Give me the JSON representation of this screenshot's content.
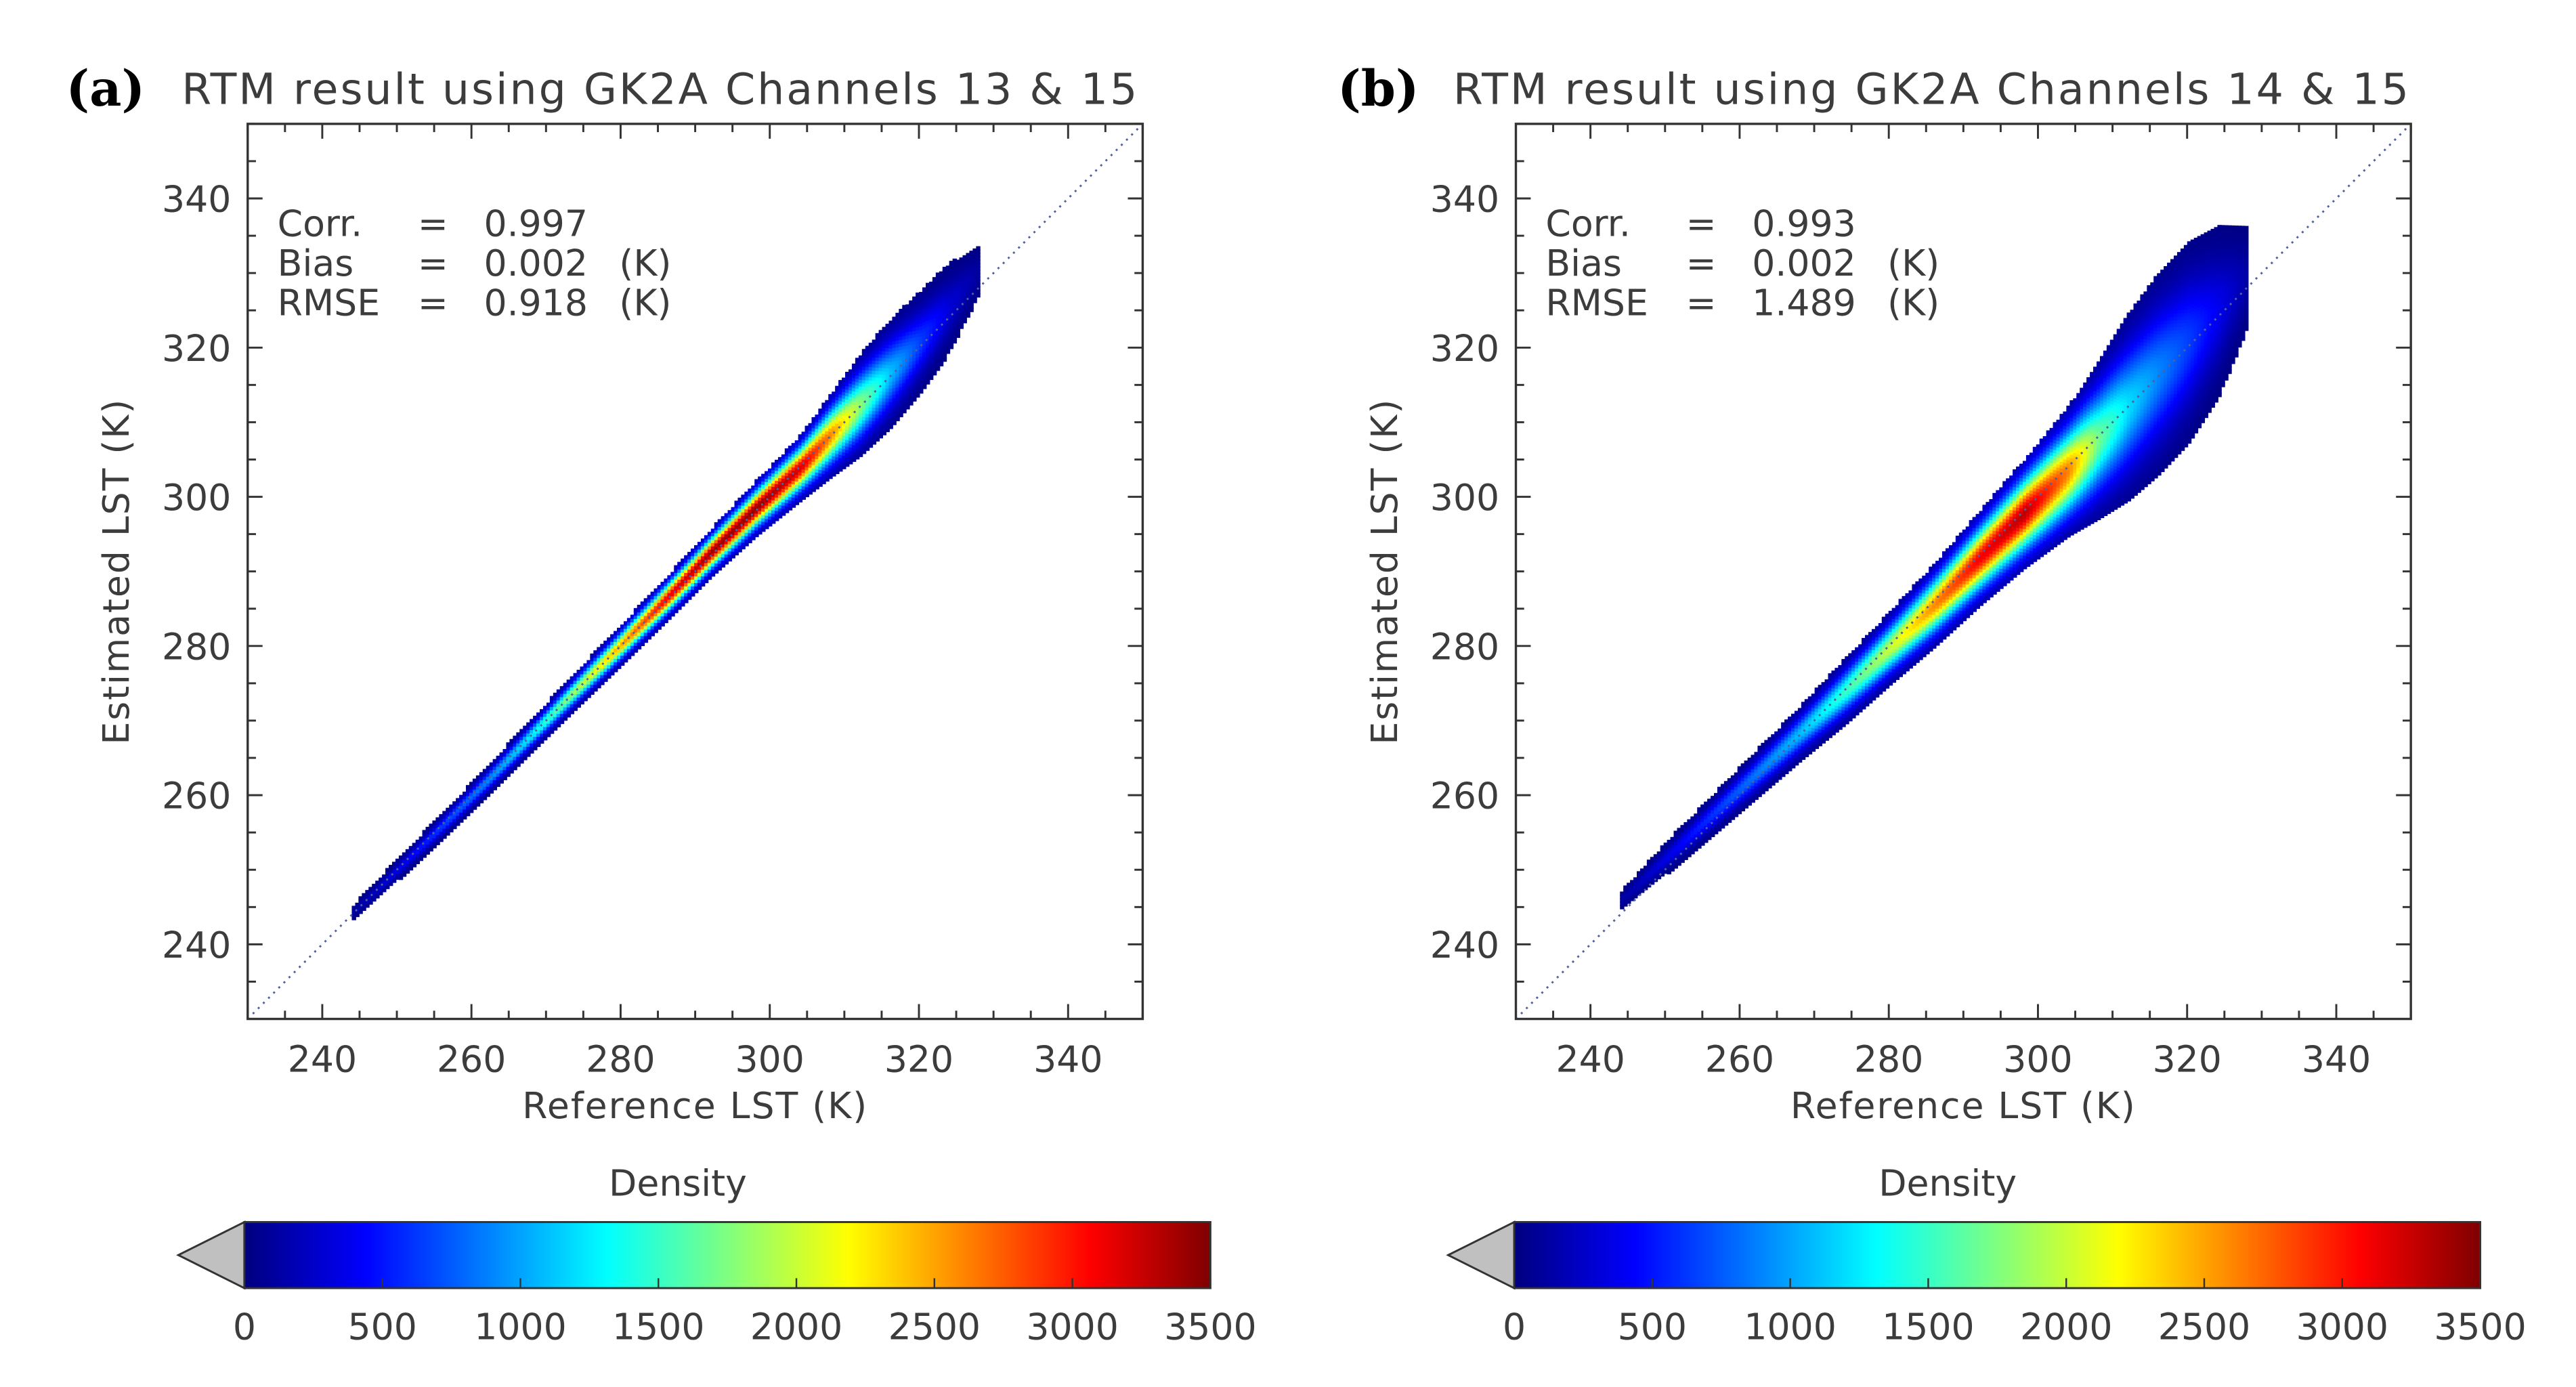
{
  "chart_data": [
    {
      "type": "scatter",
      "panel_label": "(a)",
      "title": "RTM result using GK2A Channels 13 & 15",
      "xlabel": "Reference LST (K)",
      "ylabel": "Estimated LST (K)",
      "xlim": [
        230,
        350
      ],
      "ylim": [
        230,
        350
      ],
      "xticks": [
        240,
        260,
        280,
        300,
        320,
        340
      ],
      "yticks": [
        240,
        260,
        280,
        300,
        320,
        340
      ],
      "x_tick_labels": [
        "240",
        "260",
        "280",
        "300",
        "320",
        "340"
      ],
      "y_tick_labels": [
        "240",
        "260",
        "280",
        "300",
        "320",
        "340"
      ],
      "one_to_one_line": true,
      "stats": [
        {
          "name": "Corr.",
          "eq": "=",
          "value": "0.997",
          "unit": ""
        },
        {
          "name": "Bias",
          "eq": "=",
          "value": "0.002",
          "unit": "(K)"
        },
        {
          "name": "RMSE",
          "eq": "=",
          "value": "0.918",
          "unit": "(K)"
        }
      ],
      "density_profile": [
        {
          "x": 244,
          "y_center": 244.3,
          "halfwidth": 0.5,
          "peak_density": 120
        },
        {
          "x": 250,
          "y_center": 250.1,
          "halfwidth": 0.6,
          "peak_density": 350
        },
        {
          "x": 256,
          "y_center": 256.0,
          "halfwidth": 0.7,
          "peak_density": 650
        },
        {
          "x": 262,
          "y_center": 262.0,
          "halfwidth": 0.8,
          "peak_density": 900
        },
        {
          "x": 268,
          "y_center": 268.2,
          "halfwidth": 0.9,
          "peak_density": 1300
        },
        {
          "x": 274,
          "y_center": 274.3,
          "halfwidth": 1.0,
          "peak_density": 1900
        },
        {
          "x": 280,
          "y_center": 280.3,
          "halfwidth": 1.1,
          "peak_density": 2500
        },
        {
          "x": 286,
          "y_center": 286.4,
          "halfwidth": 1.2,
          "peak_density": 3100
        },
        {
          "x": 292,
          "y_center": 292.6,
          "halfwidth": 1.3,
          "peak_density": 3400
        },
        {
          "x": 298,
          "y_center": 298.5,
          "halfwidth": 1.5,
          "peak_density": 3450
        },
        {
          "x": 304,
          "y_center": 304.0,
          "halfwidth": 1.8,
          "peak_density": 3200
        },
        {
          "x": 308,
          "y_center": 308.3,
          "halfwidth": 2.3,
          "peak_density": 2600
        },
        {
          "x": 312,
          "y_center": 312.4,
          "halfwidth": 2.8,
          "peak_density": 1800
        },
        {
          "x": 316,
          "y_center": 316.6,
          "halfwidth": 3.0,
          "peak_density": 1100
        },
        {
          "x": 320,
          "y_center": 320.8,
          "halfwidth": 2.8,
          "peak_density": 650
        },
        {
          "x": 324,
          "y_center": 325.5,
          "halfwidth": 2.5,
          "peak_density": 300
        },
        {
          "x": 328,
          "y_center": 330.5,
          "halfwidth": 1.8,
          "peak_density": 90
        }
      ],
      "colorbar": {
        "label": "Density",
        "min": 0,
        "max": 3500,
        "ticks": [
          0,
          500,
          1000,
          1500,
          2000,
          2500,
          3000,
          3500
        ],
        "tick_labels": [
          "0",
          "500",
          "1000",
          "1500",
          "2000",
          "2500",
          "3000",
          "3500"
        ],
        "colormap": [
          "#00007f",
          "#0000ff",
          "#007fff",
          "#00ffff",
          "#7fff7f",
          "#ffff00",
          "#ff7f00",
          "#ff0000",
          "#7f0000"
        ],
        "underflow_color": "#c0c0c0"
      }
    },
    {
      "type": "scatter",
      "panel_label": "(b)",
      "title": "RTM result using GK2A Channels 14 & 15",
      "xlabel": "Reference LST (K)",
      "ylabel": "Estimated LST (K)",
      "xlim": [
        230,
        350
      ],
      "ylim": [
        230,
        350
      ],
      "xticks": [
        240,
        260,
        280,
        300,
        320,
        340
      ],
      "yticks": [
        240,
        260,
        280,
        300,
        320,
        340
      ],
      "x_tick_labels": [
        "240",
        "260",
        "280",
        "300",
        "320",
        "340"
      ],
      "y_tick_labels": [
        "240",
        "260",
        "280",
        "300",
        "320",
        "340"
      ],
      "one_to_one_line": true,
      "stats": [
        {
          "name": "Corr.",
          "eq": "=",
          "value": "0.993",
          "unit": ""
        },
        {
          "name": "Bias",
          "eq": "=",
          "value": "0.002",
          "unit": "(K)"
        },
        {
          "name": "RMSE",
          "eq": "=",
          "value": "1.489",
          "unit": "(K)"
        }
      ],
      "density_profile": [
        {
          "x": 244,
          "y_center": 246.0,
          "halfwidth": 0.6,
          "peak_density": 120
        },
        {
          "x": 250,
          "y_center": 251.6,
          "halfwidth": 0.9,
          "peak_density": 350
        },
        {
          "x": 256,
          "y_center": 257.2,
          "halfwidth": 1.1,
          "peak_density": 600
        },
        {
          "x": 262,
          "y_center": 262.8,
          "halfwidth": 1.3,
          "peak_density": 850
        },
        {
          "x": 268,
          "y_center": 268.4,
          "halfwidth": 1.5,
          "peak_density": 1100
        },
        {
          "x": 274,
          "y_center": 274.0,
          "halfwidth": 1.8,
          "peak_density": 1500
        },
        {
          "x": 280,
          "y_center": 279.8,
          "halfwidth": 2.0,
          "peak_density": 2000
        },
        {
          "x": 286,
          "y_center": 285.6,
          "halfwidth": 2.3,
          "peak_density": 2600
        },
        {
          "x": 292,
          "y_center": 291.8,
          "halfwidth": 2.6,
          "peak_density": 3100
        },
        {
          "x": 298,
          "y_center": 297.8,
          "halfwidth": 3.0,
          "peak_density": 3300
        },
        {
          "x": 304,
          "y_center": 303.6,
          "halfwidth": 3.6,
          "peak_density": 2600
        },
        {
          "x": 308,
          "y_center": 307.8,
          "halfwidth": 4.4,
          "peak_density": 1700
        },
        {
          "x": 312,
          "y_center": 312.2,
          "halfwidth": 5.2,
          "peak_density": 1200
        },
        {
          "x": 316,
          "y_center": 316.6,
          "halfwidth": 5.6,
          "peak_density": 900
        },
        {
          "x": 320,
          "y_center": 320.8,
          "halfwidth": 5.6,
          "peak_density": 650
        },
        {
          "x": 324,
          "y_center": 325.0,
          "halfwidth": 4.8,
          "peak_density": 380
        },
        {
          "x": 328,
          "y_center": 329.5,
          "halfwidth": 3.4,
          "peak_density": 120
        }
      ],
      "colorbar": {
        "label": "Density",
        "min": 0,
        "max": 3500,
        "ticks": [
          0,
          500,
          1000,
          1500,
          2000,
          2500,
          3000,
          3500
        ],
        "tick_labels": [
          "0",
          "500",
          "1000",
          "1500",
          "2000",
          "2500",
          "3000",
          "3500"
        ],
        "colormap": [
          "#00007f",
          "#0000ff",
          "#007fff",
          "#00ffff",
          "#7fff7f",
          "#ffff00",
          "#ff7f00",
          "#ff0000",
          "#7f0000"
        ],
        "underflow_color": "#c0c0c0"
      }
    }
  ]
}
